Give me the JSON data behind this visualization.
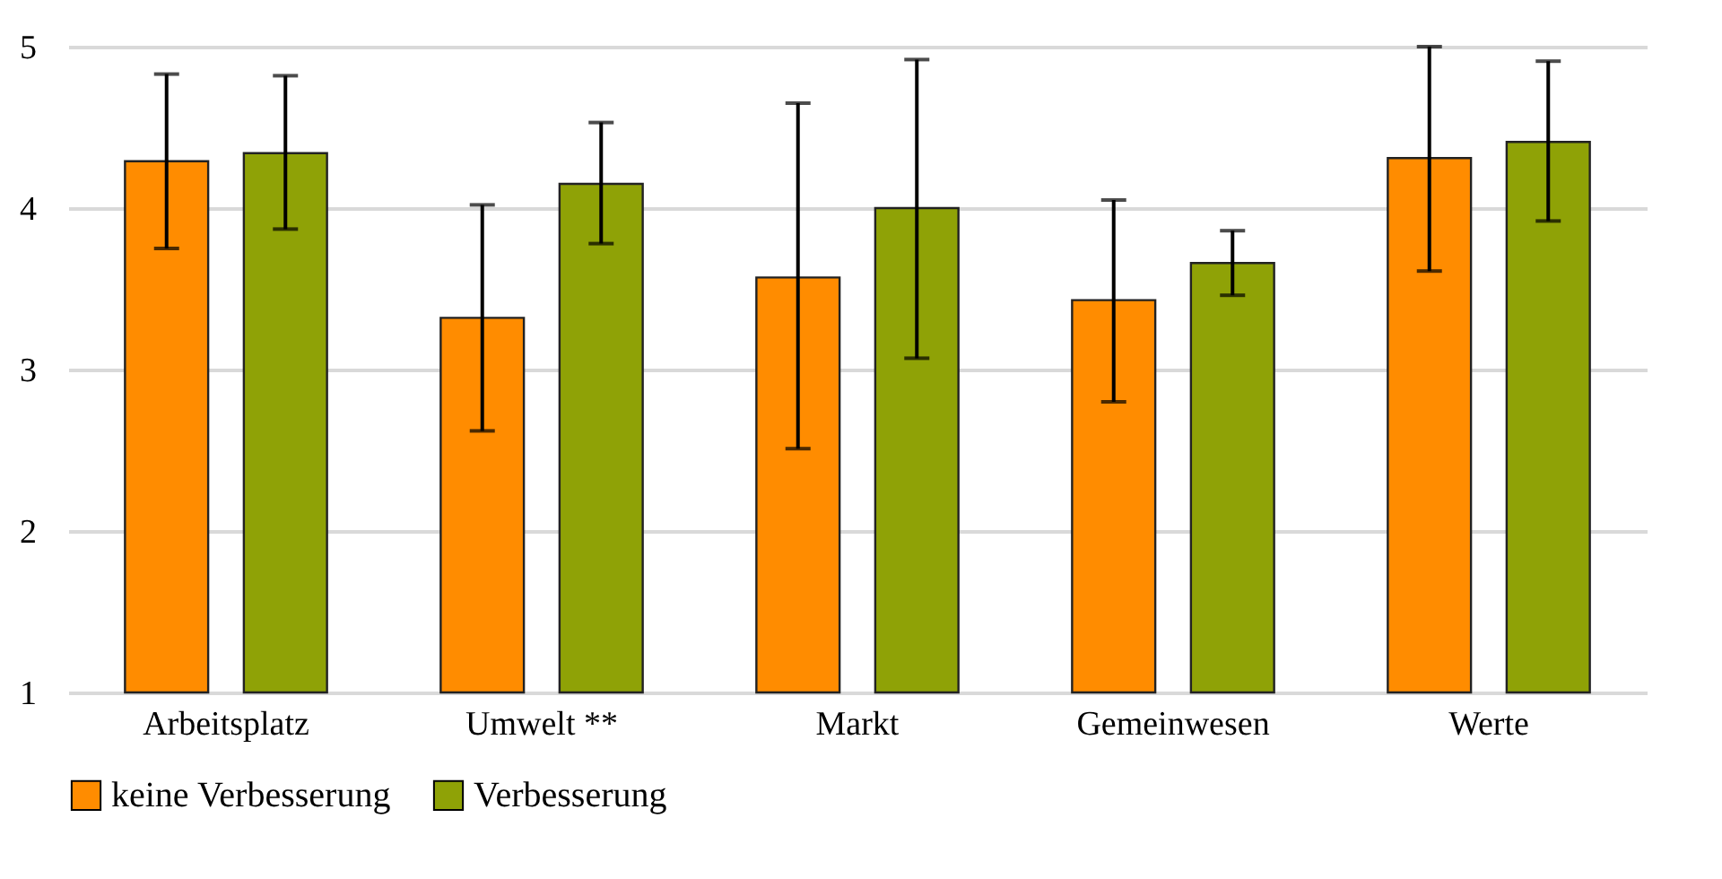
{
  "chart_data": {
    "type": "bar",
    "categories": [
      "Arbeitsplatz",
      "Umwelt **",
      "Markt",
      "Gemeinwesen",
      "Werte"
    ],
    "series": [
      {
        "name": "keine Verbesserung",
        "color": "#ff8c00",
        "values": [
          4.29,
          3.32,
          3.57,
          3.43,
          4.31
        ],
        "errors": [
          [
            3.75,
            4.83
          ],
          [
            2.62,
            4.02
          ],
          [
            2.51,
            4.65
          ],
          [
            2.8,
            4.05
          ],
          [
            3.61,
            5.0
          ]
        ]
      },
      {
        "name": "Verbesserung",
        "color": "#8fa206",
        "values": [
          4.34,
          4.15,
          4.0,
          3.66,
          4.41
        ],
        "errors": [
          [
            3.87,
            4.82
          ],
          [
            3.78,
            4.53
          ],
          [
            3.07,
            4.92
          ],
          [
            3.46,
            3.86
          ],
          [
            3.92,
            4.91
          ]
        ]
      }
    ],
    "ylim": [
      1,
      5
    ],
    "yticks": [
      1,
      2,
      3,
      4,
      5
    ],
    "grid": "y",
    "legend": "bottom"
  }
}
